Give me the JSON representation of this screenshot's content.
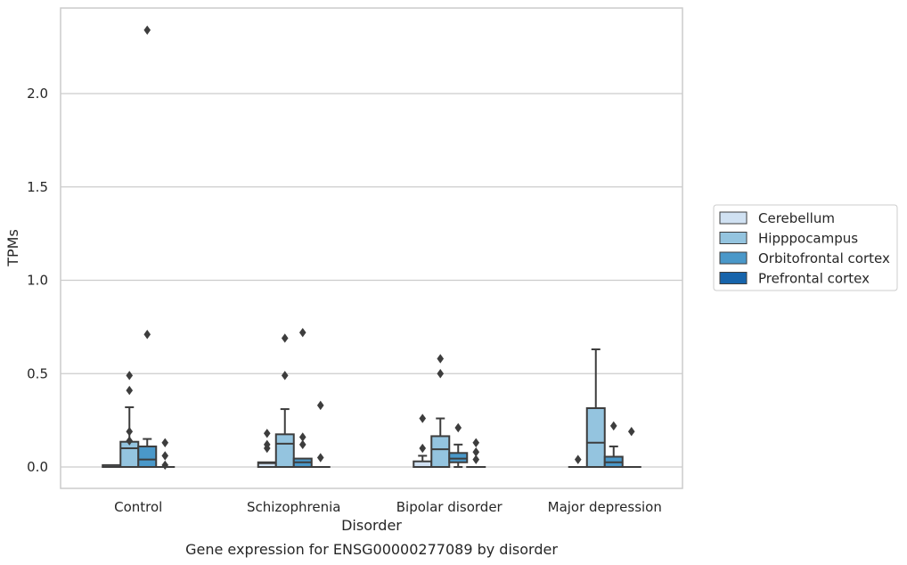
{
  "caption": "Gene expression for ENSG00000277089 by disorder",
  "chart_data": {
    "type": "box",
    "xlabel": "Disorder",
    "ylabel": "TPMs",
    "ylim": [
      -0.11,
      2.47
    ],
    "yticks": [
      "0.0",
      "0.5",
      "1.0",
      "1.5",
      "2.0"
    ],
    "ytick_values": [
      0,
      0.5,
      1.0,
      1.5,
      2.0
    ],
    "grid": "horizontal",
    "legend_placement": "right",
    "categories": [
      "Control",
      "Schizophrenia",
      "Bipolar disorder",
      "Major depression"
    ],
    "series": [
      {
        "name": "Cerebellum",
        "color": "#d0e1f2",
        "boxes": [
          {
            "q1": 0.0,
            "median": 0.0,
            "q3": 0.01,
            "whislo": 0.0,
            "whishi": 0.01,
            "fliers": []
          },
          {
            "q1": 0.0,
            "median": 0.02,
            "q3": 0.025,
            "whislo": 0.0,
            "whishi": 0.025,
            "fliers": [
              0.1,
              0.12,
              0.18
            ]
          },
          {
            "q1": 0.0,
            "median": 0.0,
            "q3": 0.03,
            "whislo": 0.0,
            "whishi": 0.06,
            "fliers": [
              0.1,
              0.26
            ]
          },
          {
            "q1": 0.0,
            "median": 0.0,
            "q3": 0.0,
            "whislo": 0.0,
            "whishi": 0.0,
            "fliers": [
              0.04
            ]
          }
        ]
      },
      {
        "name": "Hipppocampus",
        "color": "#94c4df",
        "boxes": [
          {
            "q1": 0.0,
            "median": 0.1,
            "q3": 0.135,
            "whislo": 0.0,
            "whishi": 0.32,
            "fliers": [
              0.14,
              0.19,
              0.41,
              0.49
            ]
          },
          {
            "q1": 0.0,
            "median": 0.125,
            "q3": 0.175,
            "whislo": 0.0,
            "whishi": 0.31,
            "fliers": [
              0.49,
              0.69
            ]
          },
          {
            "q1": 0.0,
            "median": 0.095,
            "q3": 0.165,
            "whislo": 0.0,
            "whishi": 0.26,
            "fliers": [
              0.5,
              0.58
            ]
          },
          {
            "q1": 0.0,
            "median": 0.13,
            "q3": 0.315,
            "whislo": 0.0,
            "whishi": 0.63,
            "fliers": []
          }
        ]
      },
      {
        "name": "Orbitofrontal cortex",
        "color": "#4a98c9",
        "boxes": [
          {
            "q1": 0.0,
            "median": 0.04,
            "q3": 0.11,
            "whislo": 0.0,
            "whishi": 0.15,
            "fliers": [
              0.71,
              2.34
            ]
          },
          {
            "q1": 0.0,
            "median": 0.025,
            "q3": 0.045,
            "whislo": 0.0,
            "whishi": 0.045,
            "fliers": [
              0.12,
              0.16,
              0.72
            ]
          },
          {
            "q1": 0.025,
            "median": 0.045,
            "q3": 0.075,
            "whislo": 0.0,
            "whishi": 0.12,
            "fliers": [
              0.21
            ]
          },
          {
            "q1": 0.0,
            "median": 0.025,
            "q3": 0.055,
            "whislo": 0.0,
            "whishi": 0.11,
            "fliers": [
              0.22
            ]
          }
        ]
      },
      {
        "name": "Prefrontal cortex",
        "color": "#1764ab",
        "boxes": [
          {
            "q1": 0.0,
            "median": 0.0,
            "q3": 0.0,
            "whislo": 0.0,
            "whishi": 0.0,
            "fliers": [
              0.01,
              0.06,
              0.13
            ]
          },
          {
            "q1": 0.0,
            "median": 0.0,
            "q3": 0.0,
            "whislo": 0.0,
            "whishi": 0.0,
            "fliers": [
              0.05,
              0.33
            ]
          },
          {
            "q1": 0.0,
            "median": 0.0,
            "q3": 0.0,
            "whislo": 0.0,
            "whishi": 0.0,
            "fliers": [
              0.04,
              0.08,
              0.13
            ]
          },
          {
            "q1": 0.0,
            "median": 0.0,
            "q3": 0.0,
            "whislo": 0.0,
            "whishi": 0.0,
            "fliers": [
              0.19
            ]
          }
        ]
      }
    ]
  }
}
